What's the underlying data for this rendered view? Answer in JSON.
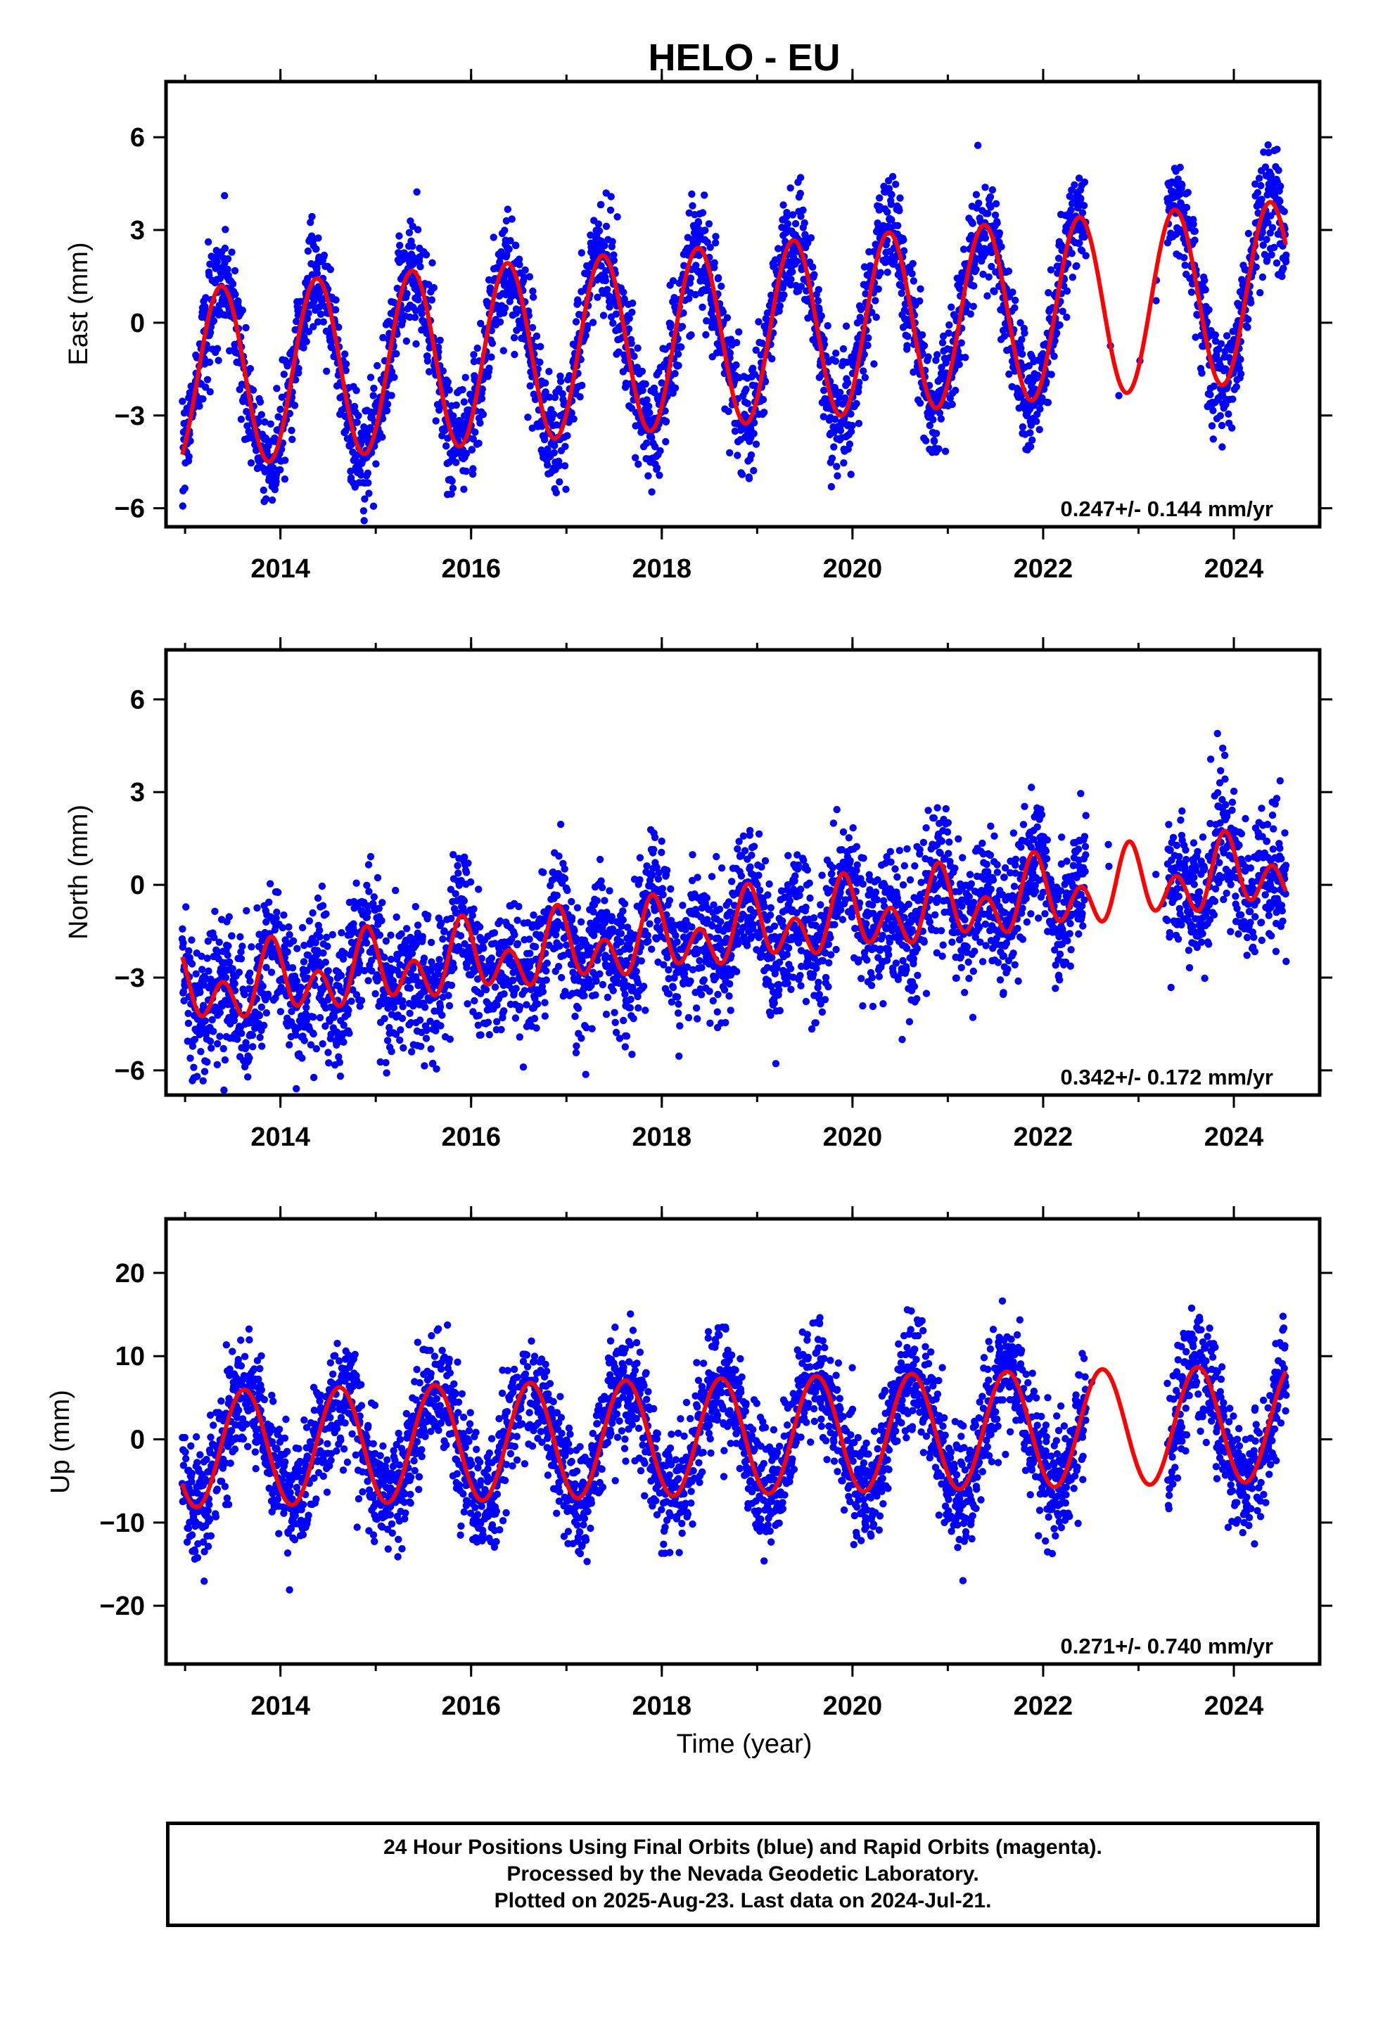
{
  "title": "HELO - EU",
  "colors": {
    "points": "#0000ff",
    "fit": "#ff0000",
    "frame": "#000000"
  },
  "chart_data": [
    {
      "type": "scatter",
      "name": "east",
      "title": "",
      "ylabel": "East (mm)",
      "xlabel": "",
      "xlim": [
        2012.8,
        2024.9
      ],
      "ylim": [
        -6.6,
        7.8
      ],
      "xticks": [
        "2014",
        "2016",
        "2018",
        "2020",
        "2022",
        "2024"
      ],
      "yticks": [
        "6",
        "3",
        "0",
        "−3",
        "−6"
      ],
      "rate_text": "0.247+/- 0.144 mm/yr",
      "fit": {
        "offset": -0.45,
        "trend": 0.247,
        "amp1": 2.9,
        "peak1": 0.38,
        "amp2": 0.0,
        "peak2": 0.0
      },
      "scatter": {
        "sd": 1.05,
        "start": 2012.97,
        "end": 2024.55
      }
    },
    {
      "type": "scatter",
      "name": "north",
      "title": "",
      "ylabel": "North (mm)",
      "xlabel": "",
      "xlim": [
        2012.8,
        2024.9
      ],
      "ylim": [
        -6.8,
        7.6
      ],
      "xticks": [
        "2014",
        "2016",
        "2018",
        "2020",
        "2022",
        "2024"
      ],
      "yticks": [
        "6",
        "3",
        "0",
        "−3",
        "−6"
      ],
      "rate_text": "0.342+/- 0.172 mm/yr",
      "fit": {
        "offset": -1.6,
        "trend": 0.342,
        "amp1": 0.65,
        "peak1": 0.92,
        "amp2": 0.85,
        "peak2": 0.4
      },
      "scatter": {
        "sd": 1.3,
        "start": 2012.97,
        "end": 2024.55
      }
    },
    {
      "type": "scatter",
      "name": "up",
      "title": "",
      "ylabel": "Up (mm)",
      "xlabel": "Time (year)",
      "xlim": [
        2012.8,
        2024.9
      ],
      "ylim": [
        -27,
        26.5
      ],
      "xticks": [
        "2014",
        "2016",
        "2018",
        "2020",
        "2022",
        "2024"
      ],
      "yticks": [
        "20",
        "10",
        "0",
        "−10",
        "−20"
      ],
      "rate_text": "0.271+/- 0.740 mm/yr",
      "fit": {
        "offset": 0.3,
        "trend": 0.271,
        "amp1": 7.0,
        "peak1": 0.62,
        "amp2": 0.0,
        "peak2": 0.0
      },
      "scatter": {
        "sd": 4.2,
        "start": 2012.97,
        "end": 2024.55
      }
    }
  ],
  "footer": {
    "line1": "24 Hour Positions Using Final Orbits (blue) and Rapid Orbits (magenta).",
    "line2": "Processed by the Nevada Geodetic Laboratory.",
    "line3": "Plotted on 2025-Aug-23. Last data on 2024-Jul-21."
  }
}
